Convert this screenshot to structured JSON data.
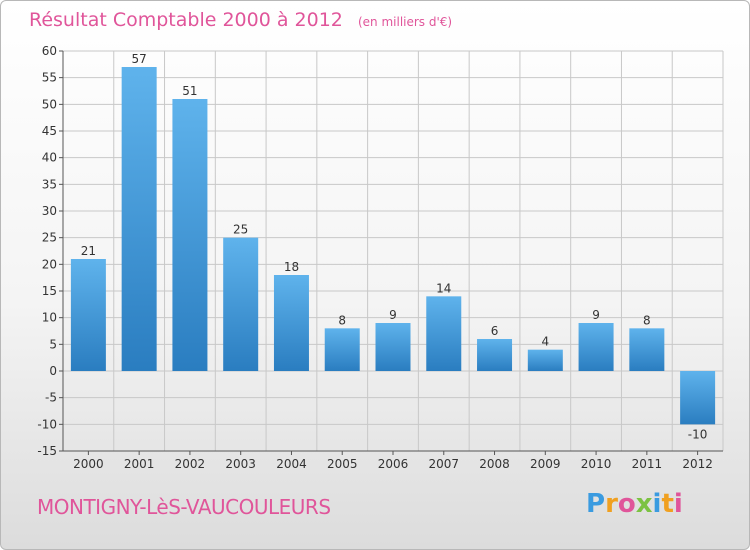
{
  "header": {
    "title": "Résultat Comptable 2000 à 2012",
    "subtitle": "(en milliers d'€)"
  },
  "footer": {
    "commune": "MONTIGNY-LèS-VAUCOULEURS",
    "logo_text": "Proxiti"
  },
  "colors": {
    "title": "#e0559a",
    "bar_top": "#5fb3ec",
    "bar_bottom": "#2a7dc0",
    "grid": "#c8c8c8"
  },
  "chart_data": {
    "type": "bar",
    "title": "Résultat Comptable 2000 à 2012",
    "subtitle": "(en milliers d'€)",
    "xlabel": "",
    "ylabel": "",
    "categories": [
      "2000",
      "2001",
      "2002",
      "2003",
      "2004",
      "2005",
      "2006",
      "2007",
      "2008",
      "2009",
      "2010",
      "2011",
      "2012"
    ],
    "values": [
      21,
      57,
      51,
      25,
      18,
      8,
      9,
      14,
      6,
      4,
      9,
      8,
      -10
    ],
    "value_labels": [
      "21",
      "57",
      "51",
      "25",
      "18",
      "8",
      "9",
      "14",
      "6",
      "4",
      "9",
      "8",
      "-10"
    ],
    "ylim": [
      -15,
      60
    ],
    "yticks": [
      -15,
      -10,
      -5,
      0,
      5,
      10,
      15,
      20,
      25,
      30,
      35,
      40,
      45,
      50,
      55,
      60
    ],
    "ytick_labels": [
      "-15",
      "-10",
      "-5",
      "0",
      "5",
      "10",
      "15",
      "20",
      "25",
      "30",
      "35",
      "40",
      "45",
      "50",
      "55",
      "60"
    ],
    "grid": true,
    "legend": "none"
  }
}
